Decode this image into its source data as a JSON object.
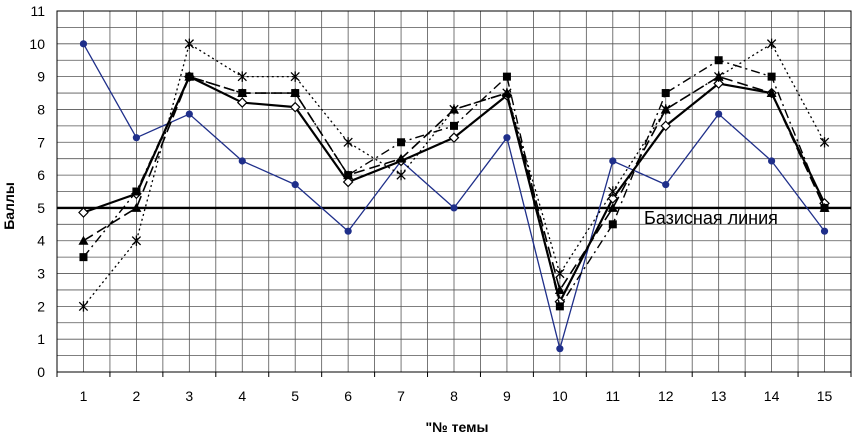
{
  "chart_data": {
    "type": "line",
    "xlabel": "\"№ темы",
    "ylabel": "Баллы",
    "ylim": [
      0,
      11
    ],
    "yticks": [
      "0",
      "1",
      "2",
      "3",
      "4",
      "5",
      "6",
      "7",
      "8",
      "9",
      "10",
      "11"
    ],
    "categories": [
      "1",
      "2",
      "3",
      "4",
      "5",
      "6",
      "7",
      "8",
      "9",
      "10",
      "11",
      "12",
      "13",
      "14",
      "15"
    ],
    "grid": true,
    "baseline": {
      "value": 5,
      "label": "Базисная линия"
    },
    "series": [
      {
        "values": [
          10,
          7.14,
          7.86,
          6.43,
          5.71,
          4.29,
          6.43,
          5,
          7.14,
          0.71,
          6.43,
          5.71,
          7.86,
          6.43,
          4.29
        ],
        "color": "#1f2f8a",
        "marker": "dot",
        "style": "solid",
        "width": 1.3
      },
      {
        "values": [
          4.86,
          5.43,
          9,
          8.21,
          8.07,
          5.79,
          6.43,
          7.14,
          8.43,
          2.14,
          5.29,
          7.5,
          8.79,
          8.5,
          5.14
        ],
        "color": "#000000",
        "marker": "open-diamond",
        "style": "solid",
        "width": 2.2
      },
      {
        "values": [
          4,
          5,
          9,
          8.5,
          8.5,
          6,
          6.5,
          8,
          8.5,
          2.5,
          5,
          8,
          9,
          8.5,
          5
        ],
        "color": "#000000",
        "marker": "triangle",
        "style": "longdash",
        "width": 1.6
      },
      {
        "values": [
          3.5,
          5.5,
          9,
          8.5,
          8.5,
          6,
          7,
          7.5,
          9,
          2,
          4.5,
          8.5,
          9.5,
          9,
          5
        ],
        "color": "#000000",
        "marker": "square",
        "style": "dashdot",
        "width": 1.4
      },
      {
        "values": [
          2,
          4,
          10,
          9,
          9,
          7,
          6,
          8,
          8.5,
          3,
          5.5,
          8,
          9,
          10,
          7
        ],
        "color": "#000000",
        "marker": "star",
        "style": "dotted",
        "width": 1.3
      }
    ]
  }
}
